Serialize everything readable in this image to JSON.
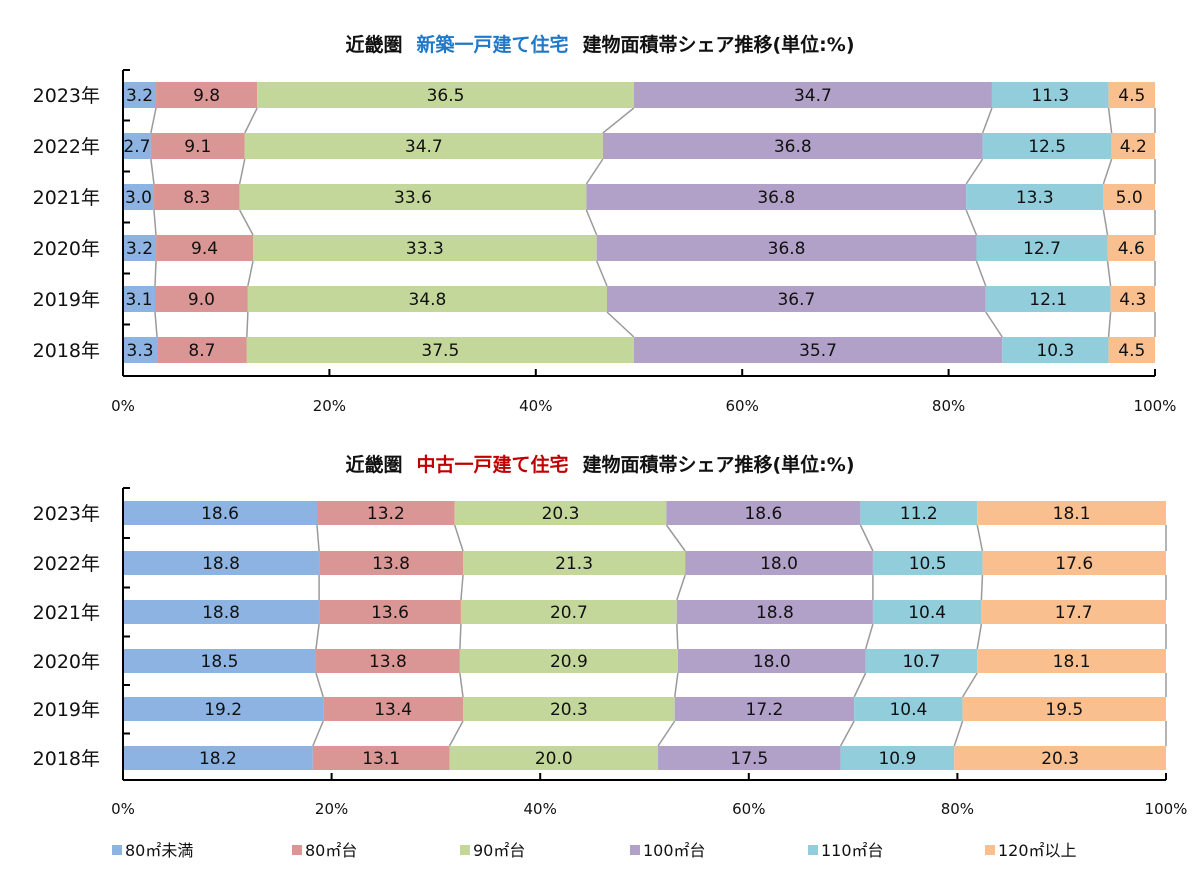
{
  "chart_data": [
    {
      "type": "bar",
      "orientation": "horizontal",
      "stacked": "100%",
      "title": {
        "prefix": "近畿圏",
        "highlight": "新築一戸建て住宅",
        "highlight_color": "#1f78c8",
        "suffix": "建物面積帯シェア推移(単位:%)"
      },
      "categories": [
        "2023年",
        "2022年",
        "2021年",
        "2020年",
        "2019年",
        "2018年"
      ],
      "series": [
        {
          "name": "80㎡未満",
          "color": "#8db3e2",
          "values": [
            3.2,
            2.7,
            3.0,
            3.2,
            3.1,
            3.3
          ]
        },
        {
          "name": "80㎡台",
          "color": "#da9694",
          "values": [
            9.8,
            9.1,
            8.3,
            9.4,
            9.0,
            8.7
          ]
        },
        {
          "name": "90㎡台",
          "color": "#c4d79b",
          "values": [
            36.5,
            34.7,
            33.6,
            33.3,
            34.8,
            37.5
          ]
        },
        {
          "name": "100㎡台",
          "color": "#b1a0c7",
          "values": [
            34.7,
            36.8,
            36.8,
            36.8,
            36.7,
            35.7
          ]
        },
        {
          "name": "110㎡台",
          "color": "#92cddc",
          "values": [
            11.3,
            12.5,
            13.3,
            12.7,
            12.1,
            10.3
          ]
        },
        {
          "name": "120㎡以上",
          "color": "#fabf8f",
          "values": [
            4.5,
            4.2,
            5.0,
            4.6,
            4.3,
            4.5
          ]
        }
      ],
      "x_ticks": [
        "0%",
        "20%",
        "40%",
        "60%",
        "80%",
        "100%"
      ],
      "xlim": [
        0,
        100
      ],
      "series_lines": true,
      "grid": false
    },
    {
      "type": "bar",
      "orientation": "horizontal",
      "stacked": "100%",
      "title": {
        "prefix": "近畿圏",
        "highlight": "中古一戸建て住宅",
        "highlight_color": "#c00000",
        "suffix": "建物面積帯シェア推移(単位:%)"
      },
      "categories": [
        "2023年",
        "2022年",
        "2021年",
        "2020年",
        "2019年",
        "2018年"
      ],
      "series": [
        {
          "name": "80㎡未満",
          "color": "#8db3e2",
          "values": [
            18.6,
            18.8,
            18.8,
            18.5,
            19.2,
            18.2
          ]
        },
        {
          "name": "80㎡台",
          "color": "#da9694",
          "values": [
            13.2,
            13.8,
            13.6,
            13.8,
            13.4,
            13.1
          ]
        },
        {
          "name": "90㎡台",
          "color": "#c4d79b",
          "values": [
            20.3,
            21.3,
            20.7,
            20.9,
            20.3,
            20.0
          ]
        },
        {
          "name": "100㎡台",
          "color": "#b1a0c7",
          "values": [
            18.6,
            18.0,
            18.8,
            18.0,
            17.2,
            17.5
          ]
        },
        {
          "name": "110㎡台",
          "color": "#92cddc",
          "values": [
            11.2,
            10.5,
            10.4,
            10.7,
            10.4,
            10.9
          ]
        },
        {
          "name": "120㎡以上",
          "color": "#fabf8f",
          "values": [
            18.1,
            17.6,
            17.7,
            18.1,
            19.5,
            20.3
          ]
        }
      ],
      "x_ticks": [
        "0%",
        "20%",
        "40%",
        "60%",
        "80%",
        "100%"
      ],
      "xlim": [
        0,
        100
      ],
      "series_lines": true,
      "grid": false
    }
  ],
  "legend": {
    "placement": "bottom",
    "items": [
      {
        "label": "80㎡未満",
        "color": "#8db3e2"
      },
      {
        "label": "80㎡台",
        "color": "#da9694"
      },
      {
        "label": "90㎡台",
        "color": "#c4d79b"
      },
      {
        "label": "100㎡台",
        "color": "#b1a0c7"
      },
      {
        "label": "110㎡台",
        "color": "#92cddc"
      },
      {
        "label": "120㎡以上",
        "color": "#fabf8f"
      }
    ]
  }
}
